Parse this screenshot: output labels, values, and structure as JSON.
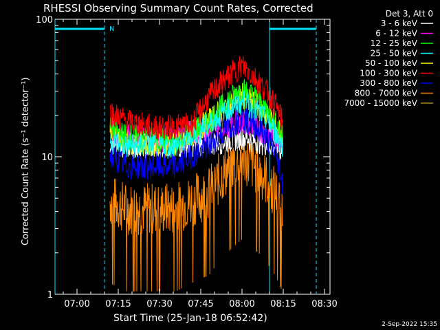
{
  "chart_data": {
    "type": "line",
    "title": "RHESSI Observing Summary Count Rates, Corrected",
    "xlabel": "Start Time (25-Jan-18 06:52:42)",
    "ylabel": "Corrected Count Rate (s⁻¹ detector⁻¹)",
    "y_scale": "log",
    "ylim": [
      1,
      100
    ],
    "xlim": [
      "06:52",
      "08:32"
    ],
    "x_ticks": [
      "07:00",
      "07:15",
      "07:30",
      "07:45",
      "08:00",
      "08:15",
      "08:30"
    ],
    "y_ticks": [
      "1",
      "10",
      "100"
    ],
    "legend_header": "Det 3, Att 0",
    "legend_position": "top-right, outside plot",
    "timestamp": "2-Sep-2022 15:35",
    "night_flag_label": "N",
    "flags": [
      {
        "name": "night",
        "color": "#00e5ff",
        "segments": [
          [
            "06:52",
            "07:10"
          ],
          [
            "08:10",
            "08:27"
          ]
        ]
      }
    ],
    "dashed_markers": [
      "07:10",
      "08:27"
    ],
    "solid_markers": [
      "06:52",
      "08:10"
    ],
    "series": [
      {
        "name": "3 - 6 keV",
        "color": "#ffffff",
        "values": [
          [
            7.2,
            13
          ],
          [
            7.3,
            12
          ],
          [
            7.6,
            12
          ],
          [
            7.9,
            13
          ],
          [
            8.0,
            14
          ],
          [
            8.1,
            13
          ],
          [
            8.2,
            12
          ],
          [
            8.25,
            11
          ]
        ]
      },
      {
        "name": "6 - 12 keV",
        "color": "#ff00ff",
        "values": [
          [
            7.2,
            15
          ],
          [
            7.3,
            14
          ],
          [
            7.5,
            13
          ],
          [
            7.8,
            16
          ],
          [
            8.0,
            18
          ],
          [
            8.1,
            16
          ],
          [
            8.25,
            13
          ]
        ]
      },
      {
        "name": "12 - 25 keV",
        "color": "#00ff00",
        "values": [
          [
            7.2,
            16
          ],
          [
            7.3,
            14
          ],
          [
            7.6,
            13
          ],
          [
            7.8,
            18
          ],
          [
            8.0,
            31
          ],
          [
            8.1,
            26
          ],
          [
            8.2,
            18
          ],
          [
            8.25,
            14
          ]
        ]
      },
      {
        "name": "25 - 50 keV",
        "color": "#00ffff",
        "values": [
          [
            7.2,
            13
          ],
          [
            7.3,
            12
          ],
          [
            7.6,
            12
          ],
          [
            7.8,
            17
          ],
          [
            8.0,
            25
          ],
          [
            8.1,
            21
          ],
          [
            8.2,
            15
          ],
          [
            8.25,
            12
          ]
        ]
      },
      {
        "name": "50 - 100 keV",
        "color": "#ffff00",
        "values": [
          [
            7.2,
            15
          ],
          [
            7.3,
            13
          ],
          [
            7.6,
            12
          ],
          [
            7.8,
            18
          ],
          [
            8.0,
            28
          ],
          [
            8.1,
            23
          ],
          [
            8.2,
            17
          ],
          [
            8.25,
            14
          ]
        ]
      },
      {
        "name": "100 - 300 keV",
        "color": "#ff0000",
        "values": [
          [
            7.2,
            21
          ],
          [
            7.3,
            18
          ],
          [
            7.5,
            16
          ],
          [
            7.7,
            17
          ],
          [
            7.85,
            32
          ],
          [
            8.0,
            46
          ],
          [
            8.1,
            35
          ],
          [
            8.2,
            24
          ],
          [
            8.25,
            17
          ]
        ]
      },
      {
        "name": "300 - 800 keV",
        "color": "#0000ff",
        "values": [
          [
            7.2,
            10
          ],
          [
            7.3,
            8.5
          ],
          [
            7.6,
            8.5
          ],
          [
            7.8,
            12
          ],
          [
            8.0,
            19
          ],
          [
            8.1,
            16
          ],
          [
            8.2,
            11
          ],
          [
            8.25,
            6
          ]
        ]
      },
      {
        "name": "800 - 7000 keV",
        "color": "#ff8800",
        "values": [
          [
            7.2,
            4.8
          ],
          [
            7.3,
            4.2
          ],
          [
            7.6,
            4.2
          ],
          [
            7.8,
            5.5
          ],
          [
            8.0,
            10
          ],
          [
            8.1,
            8
          ],
          [
            8.2,
            5.5
          ],
          [
            8.25,
            4
          ]
        ]
      },
      {
        "name": "7000 - 15000 keV",
        "color": "#b8860b",
        "values": []
      }
    ]
  }
}
